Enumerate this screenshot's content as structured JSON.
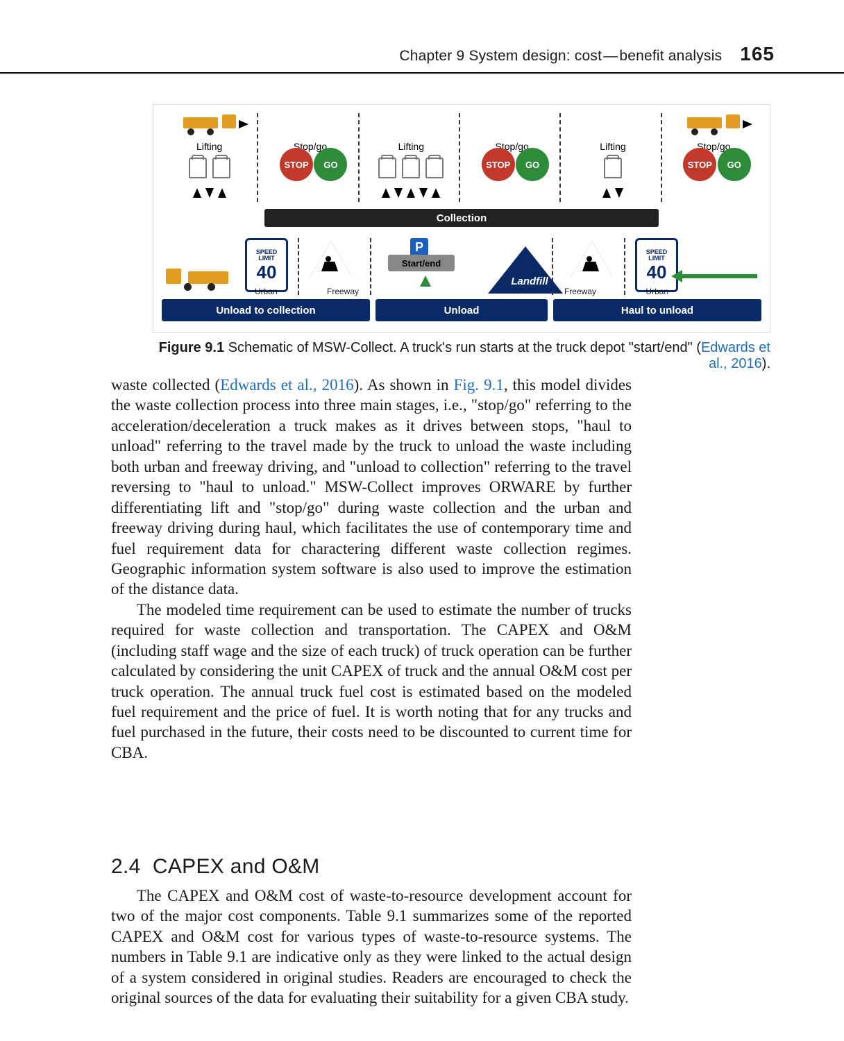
{
  "header": {
    "chapter_text": "Chapter 9  System design: cost",
    "dash": "—",
    "chapter_tail": "benefit analysis",
    "page_number": "165"
  },
  "figure": {
    "label": "Figure 9.1",
    "caption_text": "Schematic of MSW-Collect. A truck's run starts at the truck depot \"start/end\" (",
    "citation": "Edwards et al., 2016",
    "caption_tail": ").",
    "top_labels": {
      "lifting": "Lifting",
      "stopgo": "Stop/go"
    },
    "signs": {
      "stop": "STOP",
      "go": "GO"
    },
    "collection_bar": "Collection",
    "parking_letter": "P",
    "start_end": "Start/end",
    "landfill": "Landfill",
    "speed_top": "SPEED",
    "speed_mid": "LIMIT",
    "speed_value": "40",
    "urban": "Urban",
    "freeway": "Freeway",
    "bottom_bars": {
      "left": "Unload to collection",
      "mid": "Unload",
      "right": "Haul to unload"
    },
    "colors": {
      "blue": "#0a2a66",
      "green": "#2e8b3a",
      "red": "#c0392b",
      "orange": "#e39b21",
      "dark": "#222222",
      "border": "#d9d9d9"
    }
  },
  "para1_a": "waste collected (",
  "para1_cite1": "Edwards et al., 2016",
  "para1_b": "). As shown in ",
  "para1_figref": "Fig. 9.1",
  "para1_c": ", this model divides the waste collection process into three main stages, i.e., \"stop/go\" referring to the acceleration/deceleration a truck makes as it drives between stops, \"haul to unload\" referring to the travel made by the truck to unload the waste including both urban and freeway driving, and \"unload to collection\" referring to the travel reversing to \"haul to unload.\" MSW-Collect improves ORWARE by further differentiating lift and \"stop/go\" during waste collection and the urban and freeway driving during haul, which facilitates the use of contemporary time and fuel requirement data for charactering different waste collection regimes. Geographic information system software is also used to improve the estimation of the distance data.",
  "para2": "The modeled time requirement can be used to estimate the number of trucks required for waste collection and transportation. The CAPEX and O&M (including staff wage and the size of each truck) of truck operation can be further calculated by considering the unit CAPEX of truck and the annual O&M cost per truck operation. The annual truck fuel cost is estimated based on the modeled fuel requirement and the price of fuel. It is worth noting that for any trucks and fuel purchased in the future, their costs need to be discounted to current time for CBA.",
  "section": {
    "number": "2.4",
    "title": "CAPEX and O&M"
  },
  "para3_a": "The CAPEX and O&M cost of waste-to-resource development account for two of the major cost components. ",
  "para3_tab1": "Table 9.1",
  "para3_b": " summarizes some of the reported CAPEX and O&M cost for various types of waste-to-resource systems. The numbers in ",
  "para3_tab2": "Table 9.1",
  "para3_c": " are indicative only as they were linked to the actual design of a system considered in original studies. Readers are encouraged to check the original sources of the data for evaluating their suitability for a given CBA study."
}
